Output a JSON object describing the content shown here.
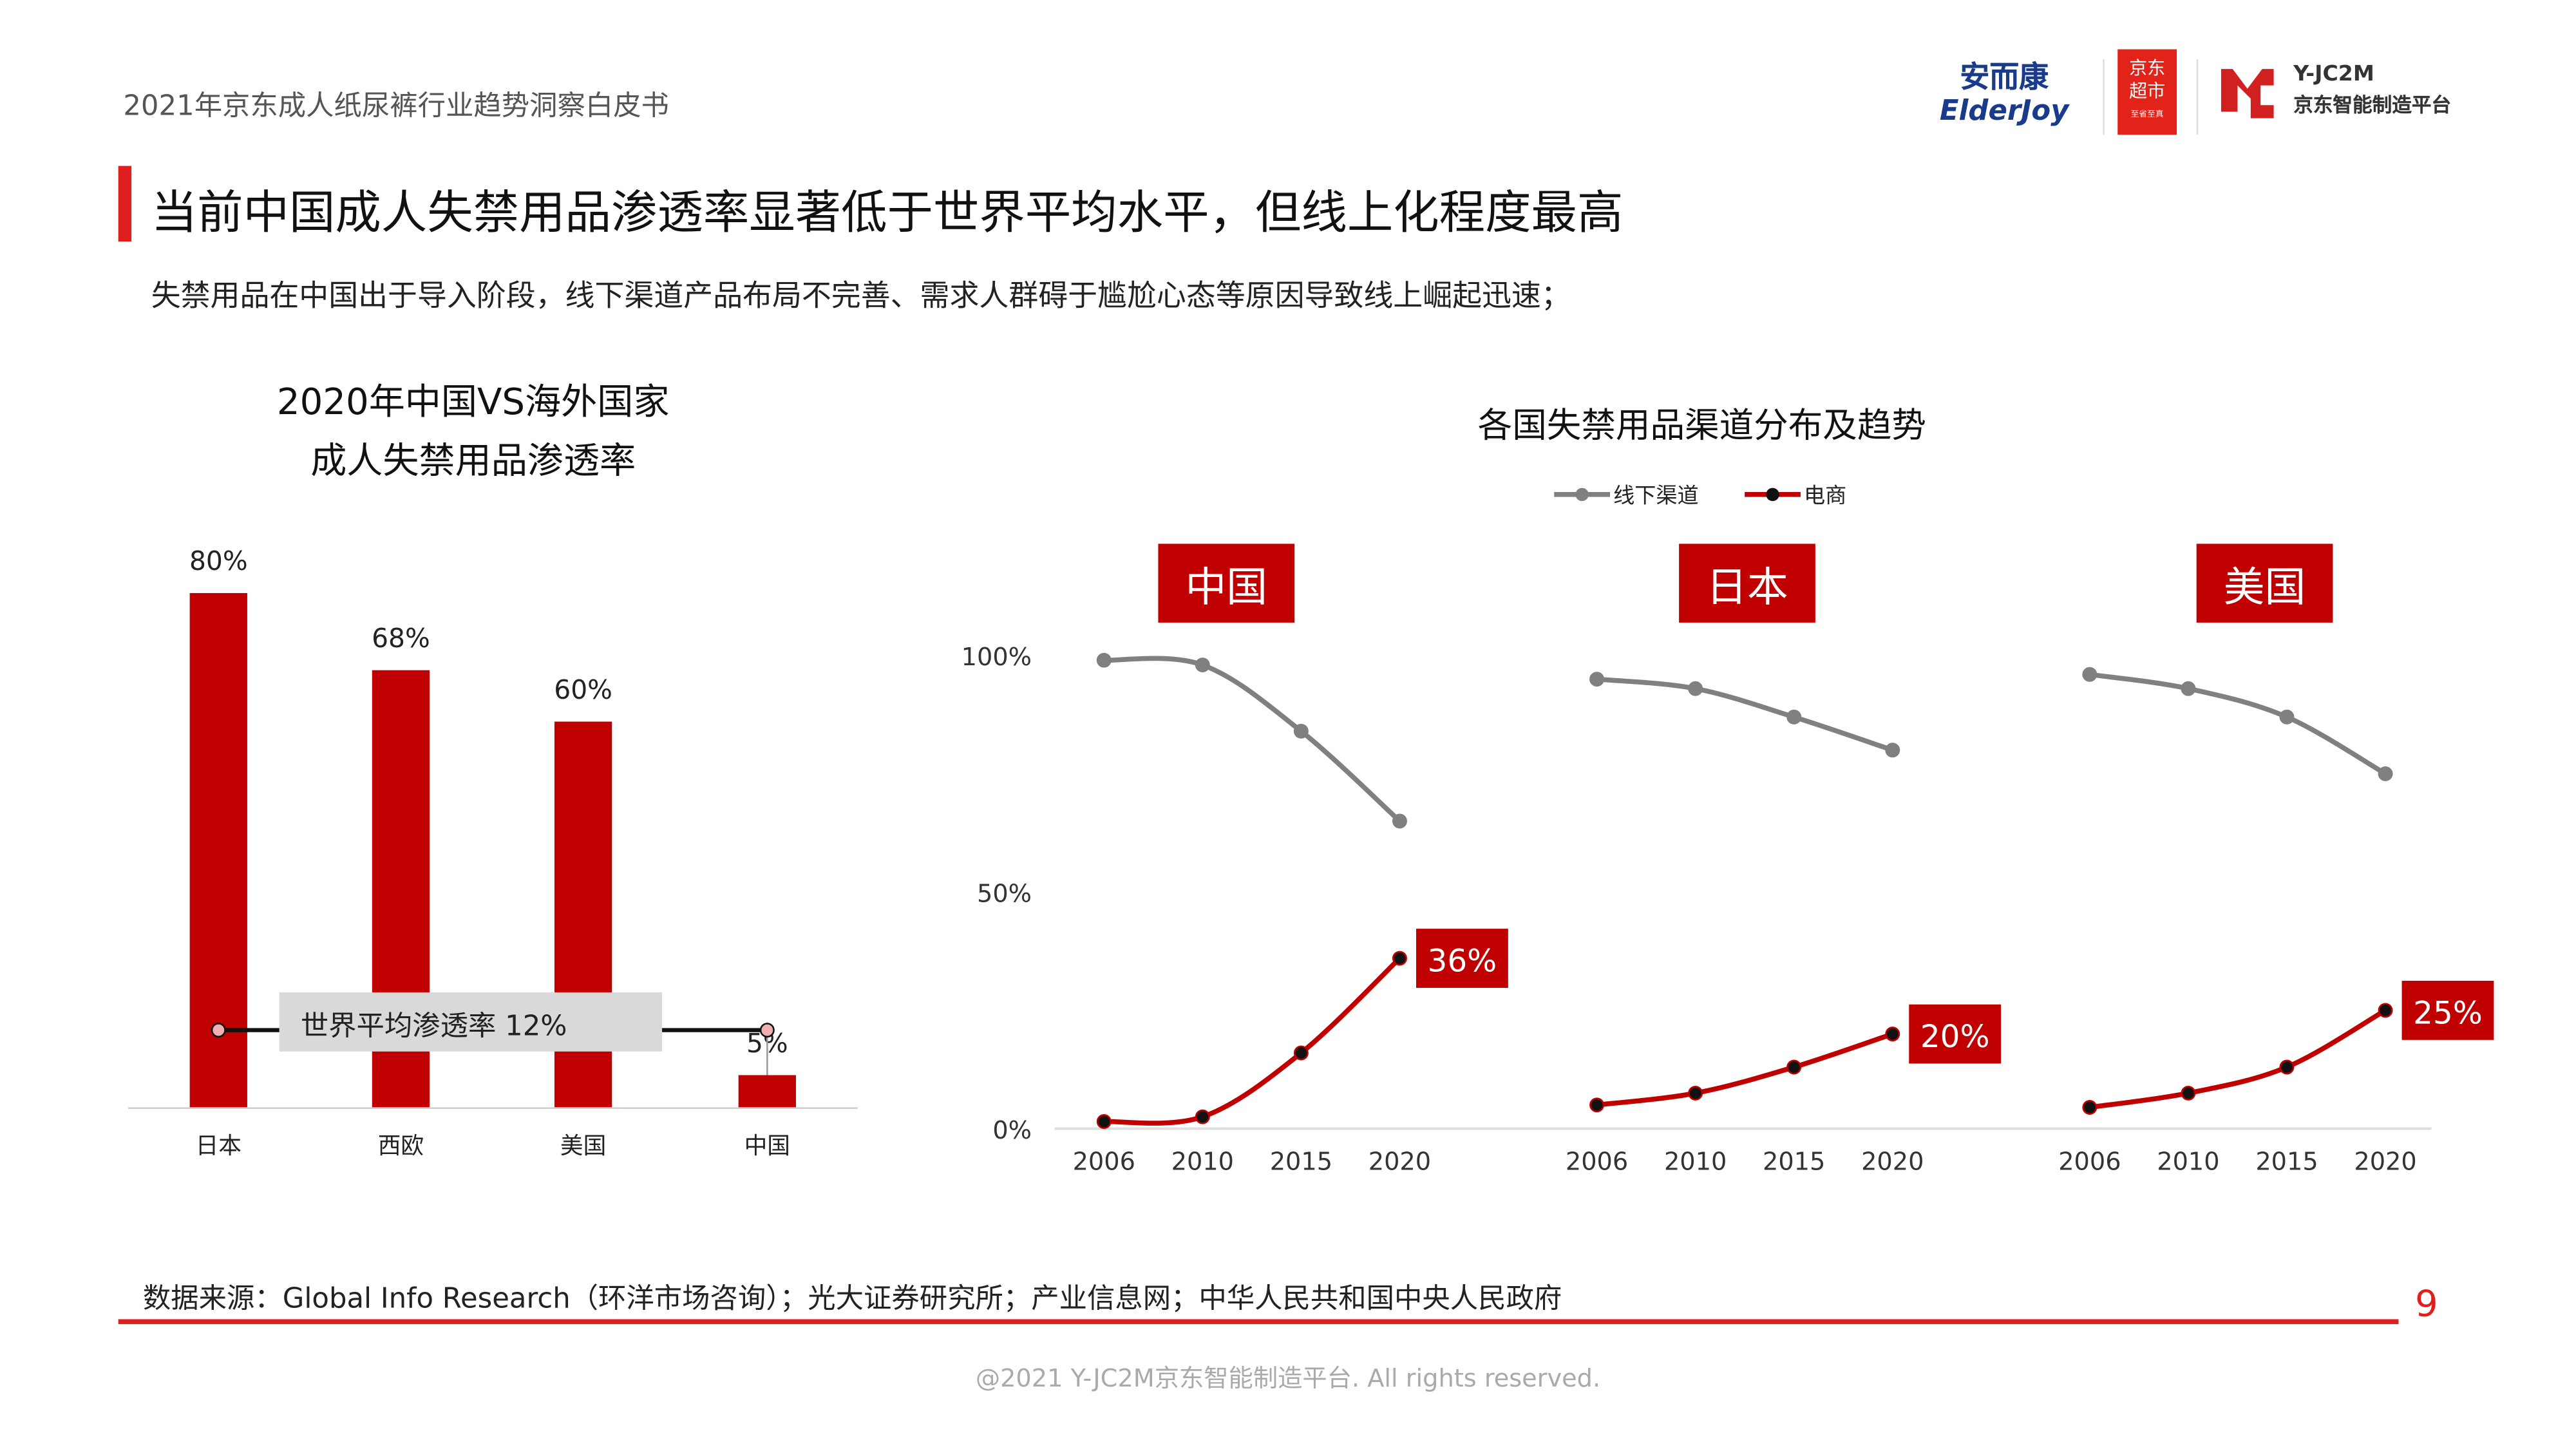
{
  "header": {
    "doc_title": "2021年京东成人纸尿裤行业趋势洞察白皮书",
    "logos": {
      "elderjoy_cn": "安而康",
      "elderjoy_en": "ElderJoy",
      "jd_market": "京东超市",
      "jd_market_slogan": "至省至真",
      "yjc2m": "Y-JC2M",
      "yjc2m_cn": "京东智能制造平台"
    }
  },
  "main_title": "当前中国成人失禁用品渗透率显著低于世界平均水平，但线上化程度最高",
  "subtitle": "失禁用品在中国出于导入阶段，线下渠道产品布局不完善、需求人群碍于尴尬心态等原因导致线上崛起迅速；",
  "colors": {
    "accent": "#e01e1e",
    "bar": "#c00000",
    "offline": "#808080",
    "online": "#c00000"
  },
  "chart_data": [
    {
      "type": "bar",
      "title": "2020年中国VS海外国家\n成人失禁用品渗透率",
      "title_lines": [
        "2020年中国VS海外国家",
        "成人失禁用品渗透率"
      ],
      "categories": [
        "日本",
        "西欧",
        "美国",
        "中国"
      ],
      "values": [
        80,
        68,
        60,
        5
      ],
      "data_labels": [
        "80%",
        "68%",
        "60%",
        "5%"
      ],
      "reference_line": {
        "label": "世界平均渗透率 12%",
        "value": 12
      },
      "ylim": [
        0,
        80
      ]
    },
    {
      "type": "line",
      "title": "各国失禁用品渠道分布及趋势",
      "legend": [
        "线下渠道",
        "电商"
      ],
      "legend_position": "top",
      "x": [
        "2006",
        "2010",
        "2015",
        "2020"
      ],
      "y_ticks": [
        "0%",
        "50%",
        "100%"
      ],
      "ylim": [
        0,
        100
      ],
      "panels": [
        {
          "name": "中国",
          "series": [
            {
              "name": "线下渠道",
              "values": [
                99,
                98,
                84,
                65
              ]
            },
            {
              "name": "电商",
              "values": [
                1.5,
                2.5,
                16,
                36
              ]
            }
          ],
          "end_label": "36%"
        },
        {
          "name": "日本",
          "series": [
            {
              "name": "线下渠道",
              "values": [
                95,
                93,
                87,
                80
              ]
            },
            {
              "name": "电商",
              "values": [
                5,
                7.5,
                13,
                20
              ]
            }
          ],
          "end_label": "20%"
        },
        {
          "name": "美国",
          "series": [
            {
              "name": "线下渠道",
              "values": [
                96,
                93,
                87,
                75
              ]
            },
            {
              "name": "电商",
              "values": [
                4.5,
                7.5,
                13,
                25
              ]
            }
          ],
          "end_label": "25%"
        }
      ]
    }
  ],
  "footer": {
    "source": "数据来源：Global Info Research（环洋市场咨询）；光大证券研究所；产业信息网；中华人民共和国中央人民政府",
    "page_number": "9",
    "copyright": "@2021 Y-JC2M京东智能制造平台. All rights reserved."
  }
}
